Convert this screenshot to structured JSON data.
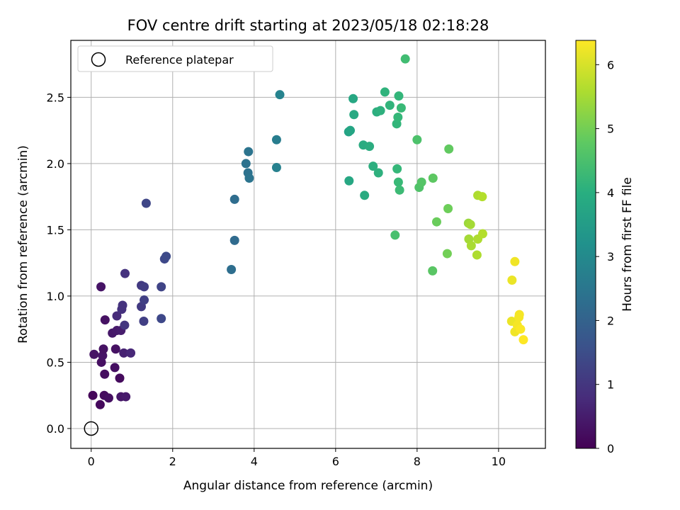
{
  "chart_data": {
    "type": "scatter",
    "title": "FOV centre drift starting at 2023/05/18 02:18:28",
    "xlabel": "Angular distance from reference (arcmin)",
    "ylabel": "Rotation from reference (arcmin)",
    "xlim": [
      -0.5,
      11.15
    ],
    "ylim": [
      -0.15,
      2.93
    ],
    "xticks": [
      0,
      2,
      4,
      6,
      8,
      10
    ],
    "yticks": [
      0.0,
      0.5,
      1.0,
      1.5,
      2.0,
      2.5
    ],
    "xtick_labels": [
      "0",
      "2",
      "4",
      "6",
      "8",
      "10"
    ],
    "ytick_labels": [
      "0.0",
      "0.5",
      "1.0",
      "1.5",
      "2.0",
      "2.5"
    ],
    "grid": true,
    "legend": {
      "position": "top-left",
      "label": "Reference platepar",
      "marker": "open-circle"
    },
    "reference_point": {
      "x": 0.0,
      "y": 0.0
    },
    "colorbar": {
      "label": "Hours from first FF file",
      "range": [
        0,
        6.38
      ],
      "ticks": [
        0,
        1,
        2,
        3,
        4,
        5,
        6
      ],
      "tick_labels": [
        "0",
        "1",
        "2",
        "3",
        "4",
        "5",
        "6"
      ],
      "colormap": "viridis"
    },
    "points": [
      {
        "x": 0.04,
        "y": 0.25,
        "c": 0.1
      },
      {
        "x": 0.22,
        "y": 0.18,
        "c": 0.15
      },
      {
        "x": 0.32,
        "y": 0.25,
        "c": 0.2
      },
      {
        "x": 0.43,
        "y": 0.23,
        "c": 0.25
      },
      {
        "x": 0.33,
        "y": 0.41,
        "c": 0.22
      },
      {
        "x": 0.25,
        "y": 0.5,
        "c": 0.28
      },
      {
        "x": 0.07,
        "y": 0.56,
        "c": 0.32
      },
      {
        "x": 0.28,
        "y": 0.55,
        "c": 0.35
      },
      {
        "x": 0.3,
        "y": 0.6,
        "c": 0.3
      },
      {
        "x": 0.58,
        "y": 0.46,
        "c": 0.25
      },
      {
        "x": 0.7,
        "y": 0.38,
        "c": 0.18
      },
      {
        "x": 0.6,
        "y": 0.6,
        "c": 0.3
      },
      {
        "x": 0.73,
        "y": 0.24,
        "c": 0.4
      },
      {
        "x": 0.85,
        "y": 0.24,
        "c": 0.45
      },
      {
        "x": 0.52,
        "y": 0.72,
        "c": 0.42
      },
      {
        "x": 0.63,
        "y": 0.74,
        "c": 0.45
      },
      {
        "x": 0.34,
        "y": 0.82,
        "c": 0.3
      },
      {
        "x": 0.24,
        "y": 1.07,
        "c": 0.35
      },
      {
        "x": 0.73,
        "y": 0.74,
        "c": 0.5
      },
      {
        "x": 0.8,
        "y": 0.57,
        "c": 0.6
      },
      {
        "x": 0.97,
        "y": 0.57,
        "c": 0.7
      },
      {
        "x": 0.63,
        "y": 0.85,
        "c": 0.8
      },
      {
        "x": 0.75,
        "y": 0.9,
        "c": 0.9
      },
      {
        "x": 0.77,
        "y": 0.93,
        "c": 0.95
      },
      {
        "x": 0.82,
        "y": 0.78,
        "c": 1.0
      },
      {
        "x": 0.83,
        "y": 1.17,
        "c": 0.95
      },
      {
        "x": 1.23,
        "y": 1.08,
        "c": 1.1
      },
      {
        "x": 1.3,
        "y": 1.07,
        "c": 1.15
      },
      {
        "x": 1.23,
        "y": 0.92,
        "c": 1.1
      },
      {
        "x": 1.3,
        "y": 0.97,
        "c": 1.2
      },
      {
        "x": 1.29,
        "y": 0.81,
        "c": 1.2
      },
      {
        "x": 1.72,
        "y": 1.07,
        "c": 1.3
      },
      {
        "x": 1.72,
        "y": 0.83,
        "c": 1.4
      },
      {
        "x": 1.35,
        "y": 1.7,
        "c": 1.35
      },
      {
        "x": 1.8,
        "y": 1.28,
        "c": 1.4
      },
      {
        "x": 1.84,
        "y": 1.3,
        "c": 1.45
      },
      {
        "x": 3.44,
        "y": 1.2,
        "c": 2.3
      },
      {
        "x": 3.52,
        "y": 1.42,
        "c": 2.2
      },
      {
        "x": 3.52,
        "y": 1.73,
        "c": 2.25
      },
      {
        "x": 3.8,
        "y": 2.0,
        "c": 2.4
      },
      {
        "x": 3.86,
        "y": 2.09,
        "c": 2.45
      },
      {
        "x": 3.85,
        "y": 1.93,
        "c": 2.4
      },
      {
        "x": 3.88,
        "y": 1.89,
        "c": 2.45
      },
      {
        "x": 4.55,
        "y": 2.18,
        "c": 2.7
      },
      {
        "x": 4.55,
        "y": 1.97,
        "c": 2.8
      },
      {
        "x": 4.63,
        "y": 2.52,
        "c": 2.85
      },
      {
        "x": 6.32,
        "y": 2.24,
        "c": 3.7
      },
      {
        "x": 6.36,
        "y": 2.25,
        "c": 3.75
      },
      {
        "x": 6.33,
        "y": 1.87,
        "c": 3.8
      },
      {
        "x": 6.43,
        "y": 2.49,
        "c": 3.8
      },
      {
        "x": 6.45,
        "y": 2.37,
        "c": 3.85
      },
      {
        "x": 6.68,
        "y": 2.14,
        "c": 3.9
      },
      {
        "x": 6.83,
        "y": 2.13,
        "c": 3.95
      },
      {
        "x": 6.71,
        "y": 1.76,
        "c": 3.9
      },
      {
        "x": 6.92,
        "y": 1.98,
        "c": 4.0
      },
      {
        "x": 7.05,
        "y": 1.93,
        "c": 4.05
      },
      {
        "x": 7.01,
        "y": 2.39,
        "c": 4.0
      },
      {
        "x": 7.1,
        "y": 2.4,
        "c": 4.05
      },
      {
        "x": 7.21,
        "y": 2.54,
        "c": 4.1
      },
      {
        "x": 7.33,
        "y": 2.44,
        "c": 4.15
      },
      {
        "x": 7.5,
        "y": 2.3,
        "c": 4.2
      },
      {
        "x": 7.53,
        "y": 2.35,
        "c": 4.25
      },
      {
        "x": 7.55,
        "y": 2.51,
        "c": 4.2
      },
      {
        "x": 7.61,
        "y": 2.42,
        "c": 4.3
      },
      {
        "x": 7.71,
        "y": 2.79,
        "c": 4.4
      },
      {
        "x": 7.51,
        "y": 1.96,
        "c": 4.25
      },
      {
        "x": 7.54,
        "y": 1.86,
        "c": 4.3
      },
      {
        "x": 7.57,
        "y": 1.8,
        "c": 4.35
      },
      {
        "x": 7.46,
        "y": 1.46,
        "c": 4.5
      },
      {
        "x": 8.0,
        "y": 2.18,
        "c": 4.55
      },
      {
        "x": 8.05,
        "y": 1.82,
        "c": 4.6
      },
      {
        "x": 8.11,
        "y": 1.86,
        "c": 4.65
      },
      {
        "x": 8.39,
        "y": 1.89,
        "c": 4.75
      },
      {
        "x": 8.78,
        "y": 2.11,
        "c": 4.8
      },
      {
        "x": 8.38,
        "y": 1.19,
        "c": 4.7
      },
      {
        "x": 8.48,
        "y": 1.56,
        "c": 4.9
      },
      {
        "x": 8.74,
        "y": 1.32,
        "c": 5.0
      },
      {
        "x": 8.76,
        "y": 1.66,
        "c": 4.95
      },
      {
        "x": 9.26,
        "y": 1.55,
        "c": 5.4
      },
      {
        "x": 9.31,
        "y": 1.54,
        "c": 5.5
      },
      {
        "x": 9.27,
        "y": 1.43,
        "c": 5.5
      },
      {
        "x": 9.33,
        "y": 1.38,
        "c": 5.55
      },
      {
        "x": 9.47,
        "y": 1.31,
        "c": 5.6
      },
      {
        "x": 9.49,
        "y": 1.43,
        "c": 5.6
      },
      {
        "x": 9.61,
        "y": 1.47,
        "c": 5.65
      },
      {
        "x": 9.49,
        "y": 1.76,
        "c": 5.6
      },
      {
        "x": 9.6,
        "y": 1.75,
        "c": 5.65
      },
      {
        "x": 10.32,
        "y": 0.81,
        "c": 6.2
      },
      {
        "x": 10.33,
        "y": 1.12,
        "c": 6.2
      },
      {
        "x": 10.4,
        "y": 1.26,
        "c": 6.25
      },
      {
        "x": 10.4,
        "y": 0.73,
        "c": 6.25
      },
      {
        "x": 10.46,
        "y": 0.78,
        "c": 6.3
      },
      {
        "x": 10.5,
        "y": 0.84,
        "c": 6.3
      },
      {
        "x": 10.51,
        "y": 0.86,
        "c": 6.3
      },
      {
        "x": 10.54,
        "y": 0.75,
        "c": 6.35
      },
      {
        "x": 10.61,
        "y": 0.67,
        "c": 6.38
      }
    ]
  }
}
